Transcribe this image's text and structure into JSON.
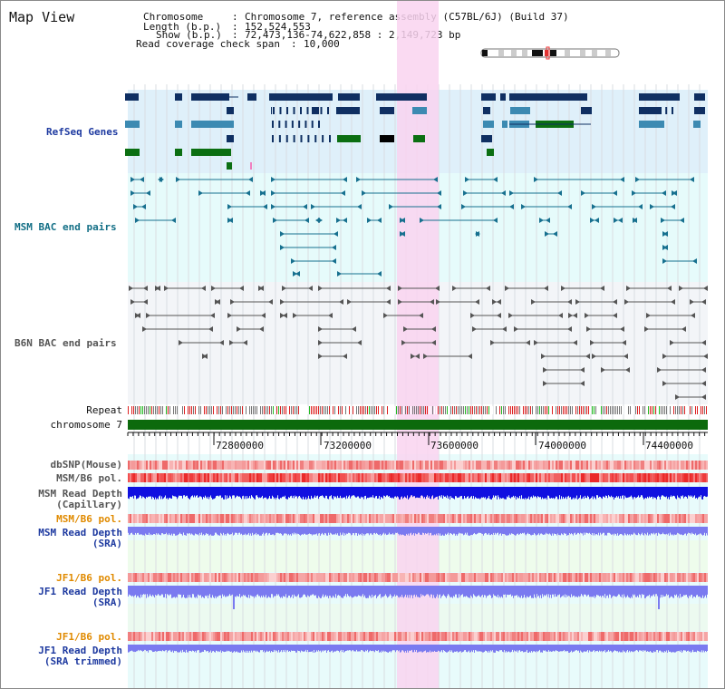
{
  "header": {
    "view_title": "Map View",
    "chromosome_label": "Chromosome",
    "chromosome_value": "Chromosome 7, reference assembly (C57BL/6J) (Build 37)",
    "length_label": "Length (b.p.)",
    "length_value": "152,524,553",
    "show_label": "Show (b.p.)",
    "show_value": "72,473,136-74,622,858 : 2,149,723 bp",
    "coverage_label": "Read coverage check span",
    "coverage_value": "10,000"
  },
  "tracks": {
    "refseq": "RefSeq Genes",
    "msm_bac": "MSM BAC end pairs",
    "b6n_bac": "B6N BAC end pairs",
    "repeat": "Repeat",
    "chromosome": "chromosome 7",
    "dbsnp": "dbSNP(Mouse)",
    "msm_b6_pol": "MSM/B6 pol.",
    "msm_depth_cap_1": "MSM Read Depth",
    "msm_depth_cap_2": "(Capillary)",
    "msm_b6_pol_2": "MSM/B6 pol.",
    "msm_depth_sra_1": "MSM Read Depth",
    "msm_depth_sra_2": "(SRA)",
    "jf1_b6_pol": "JF1/B6 pol.",
    "jf1_depth_sra_1": "JF1 Read Depth",
    "jf1_depth_sra_2": "(SRA)",
    "jf1_b6_pol_2": "JF1/B6 pol.",
    "jf1_depth_trim_1": "JF1 Read Depth",
    "jf1_depth_trim_2": "(SRA trimmed)"
  },
  "axis": {
    "ticks": [
      "72800000",
      "73200000",
      "73600000",
      "74000000",
      "74400000"
    ]
  },
  "colors": {
    "gene_dark": "#0f2f62",
    "gene_mid": "#3c8ab2",
    "gene_green": "#0b6f12",
    "bac_msm": "#17708f",
    "bac_b6n": "#555555",
    "highlight": "#f9d3f0",
    "chrom_bar": "#0c6a0c",
    "depth_blue": "#1010e0",
    "depth_light": "#7a7af0"
  }
}
